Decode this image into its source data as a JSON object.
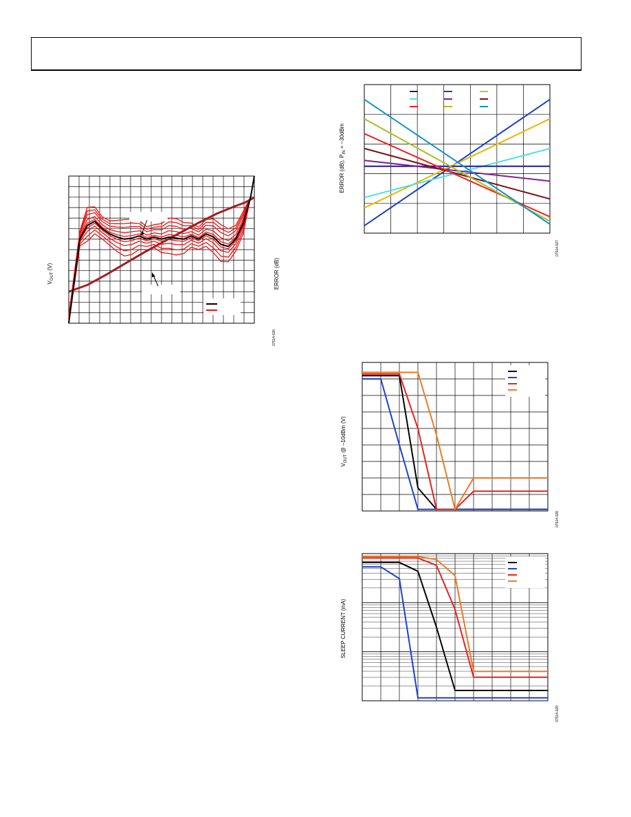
{
  "page": {
    "header_text": ""
  },
  "chart_data": [
    {
      "id": "vout-error-distribution",
      "type": "line",
      "ylabel_left": "V",
      "ylabel_left_sub": "OUT",
      "ylabel_left_unit": " (V)",
      "ylabel_right": "ERROR (dB)",
      "figure_id": "07514-026",
      "series": [
        {
          "name": "",
          "color": "#000000",
          "role": "vout_typ",
          "x": [
            0,
            6,
            10,
            14,
            18,
            22,
            26,
            30,
            34,
            38,
            42,
            46,
            50,
            54,
            58,
            62,
            66,
            70,
            74,
            78,
            82,
            86,
            90,
            94,
            98,
            100
          ],
          "values": [
            0,
            0.8,
            0.93,
            0.97,
            0.9,
            0.85,
            0.82,
            0.8,
            0.81,
            0.83,
            0.8,
            0.82,
            0.8,
            0.82,
            0.81,
            0.8,
            0.83,
            0.8,
            0.85,
            0.82,
            0.75,
            0.73,
            0.8,
            0.95,
            1.2,
            1.4
          ]
        },
        {
          "name": "",
          "color": "#a02020",
          "role": "error_typ",
          "x": [
            0,
            10,
            20,
            30,
            40,
            50,
            60,
            70,
            80,
            90,
            95,
            100
          ],
          "values": [
            0,
            0.08,
            0.2,
            0.33,
            0.46,
            0.58,
            0.7,
            0.82,
            0.93,
            1.02,
            1.06,
            1.12
          ]
        }
      ],
      "family": {
        "color": "#ee1111",
        "offsets": [
          -0.13,
          -0.09,
          -0.05,
          -0.02,
          0.02,
          0.05,
          0.09,
          0.12,
          0.15
        ]
      },
      "legend": {
        "position": "bottom-right",
        "entries": [
          "",
          ""
        ]
      }
    },
    {
      "id": "error-vs-temperature",
      "type": "line",
      "ylabel": "ERROR (dB), P",
      "ylabel_sub": "IN",
      "ylabel_tail": " = –30dBm",
      "figure_id": "07514-027",
      "legend": {
        "position": "top",
        "entries": [
          "",
          "",
          "",
          "",
          "",
          "",
          "",
          "",
          ""
        ]
      },
      "series": [
        {
          "name": "",
          "color": "#1a3fbf",
          "x": [
            0,
            100
          ],
          "values": [
            -2.0,
            2.25
          ]
        },
        {
          "name": "",
          "color": "#f0b400",
          "x": [
            0,
            100
          ],
          "values": [
            -1.4,
            1.6
          ]
        },
        {
          "name": "",
          "color": "#4de0e8",
          "x": [
            0,
            100
          ],
          "values": [
            -1.05,
            0.6
          ]
        },
        {
          "name": "",
          "color": "#1a1a9a",
          "x": [
            0,
            100
          ],
          "values": [
            0,
            0
          ]
        },
        {
          "name": "",
          "color": "#802090",
          "x": [
            0,
            100
          ],
          "values": [
            0.2,
            -0.5
          ]
        },
        {
          "name": "",
          "color": "#7a1010",
          "x": [
            0,
            100
          ],
          "values": [
            0.6,
            -1.1
          ]
        },
        {
          "name": "",
          "color": "#ee2222",
          "x": [
            0,
            100
          ],
          "values": [
            1.1,
            -1.7
          ]
        },
        {
          "name": "",
          "color": "#a8c020",
          "x": [
            0,
            100
          ],
          "values": [
            1.6,
            -1.85
          ]
        },
        {
          "name": "",
          "color": "#1090d0",
          "x": [
            0,
            100
          ],
          "values": [
            2.25,
            -1.95
          ]
        }
      ],
      "ylim": [
        -2.25,
        2.75
      ]
    },
    {
      "id": "vout-vs-enable",
      "type": "line",
      "ylabel": "V",
      "ylabel_sub": "OUT",
      "ylabel_tail": " @ –10dBm (V)",
      "figure_id": "07514-028",
      "legend": {
        "position": "top-right",
        "entries": [
          "",
          "",
          "",
          ""
        ]
      },
      "series": [
        {
          "name": "",
          "color": "#000000",
          "x": [
            0,
            1,
            2,
            3,
            4,
            5,
            6,
            7,
            8,
            9,
            10
          ],
          "values": [
            0.82,
            0.82,
            0.82,
            0.14,
            0.01,
            0.01,
            0.01,
            0.01,
            0.01,
            0.01,
            0.01
          ]
        },
        {
          "name": "",
          "color": "#1a3fd0",
          "x": [
            0,
            1,
            2,
            3,
            4,
            5,
            6,
            7,
            8,
            9,
            10
          ],
          "values": [
            0.8,
            0.8,
            0.4,
            0.01,
            0.01,
            0.01,
            0.01,
            0.01,
            0.01,
            0.01,
            0.01
          ]
        },
        {
          "name": "",
          "color": "#e82020",
          "x": [
            0,
            1,
            2,
            3,
            4,
            5,
            6,
            7,
            8,
            9,
            10
          ],
          "values": [
            0.83,
            0.83,
            0.83,
            0.5,
            0.01,
            0.01,
            0.12,
            0.12,
            0.12,
            0.12,
            0.12
          ]
        },
        {
          "name": "",
          "color": "#f07820",
          "x": [
            0,
            1,
            2,
            3,
            4,
            5,
            6,
            7,
            8,
            9,
            10
          ],
          "values": [
            0.84,
            0.84,
            0.84,
            0.84,
            0.46,
            0.01,
            0.2,
            0.2,
            0.2,
            0.2,
            0.2
          ]
        }
      ],
      "ylim": [
        0,
        0.9
      ]
    },
    {
      "id": "sleep-current",
      "type": "line",
      "ylabel": "SLEEP CURRENT (mA)",
      "figure_id": "07514-029",
      "legend": {
        "position": "top-right",
        "entries": [
          "",
          "",
          "",
          ""
        ]
      },
      "series": [
        {
          "name": "",
          "color": "#000000",
          "x": [
            0,
            1,
            2,
            3,
            4,
            5,
            6,
            7,
            8,
            9,
            10
          ],
          "values": [
            0.94,
            0.94,
            0.94,
            0.88,
            0.5,
            0.07,
            0.07,
            0.07,
            0.07,
            0.07,
            0.07
          ]
        },
        {
          "name": "",
          "color": "#1a3fd0",
          "x": [
            0,
            1,
            2,
            3,
            4,
            5,
            6,
            7,
            8,
            9,
            10
          ],
          "values": [
            0.91,
            0.91,
            0.83,
            0.02,
            0.02,
            0.02,
            0.02,
            0.02,
            0.02,
            0.02,
            0.02
          ]
        },
        {
          "name": "",
          "color": "#e82020",
          "x": [
            0,
            1,
            2,
            3,
            4,
            5,
            6,
            7,
            8,
            9,
            10
          ],
          "values": [
            0.97,
            0.97,
            0.97,
            0.97,
            0.92,
            0.62,
            0.16,
            0.16,
            0.16,
            0.16,
            0.16
          ]
        },
        {
          "name": "",
          "color": "#f07820",
          "x": [
            0,
            1,
            2,
            3,
            4,
            5,
            6,
            7,
            8,
            9,
            10
          ],
          "values": [
            0.98,
            0.98,
            0.98,
            0.98,
            0.96,
            0.85,
            0.2,
            0.2,
            0.2,
            0.2,
            0.2
          ]
        }
      ],
      "ylim": [
        0,
        1
      ]
    }
  ]
}
